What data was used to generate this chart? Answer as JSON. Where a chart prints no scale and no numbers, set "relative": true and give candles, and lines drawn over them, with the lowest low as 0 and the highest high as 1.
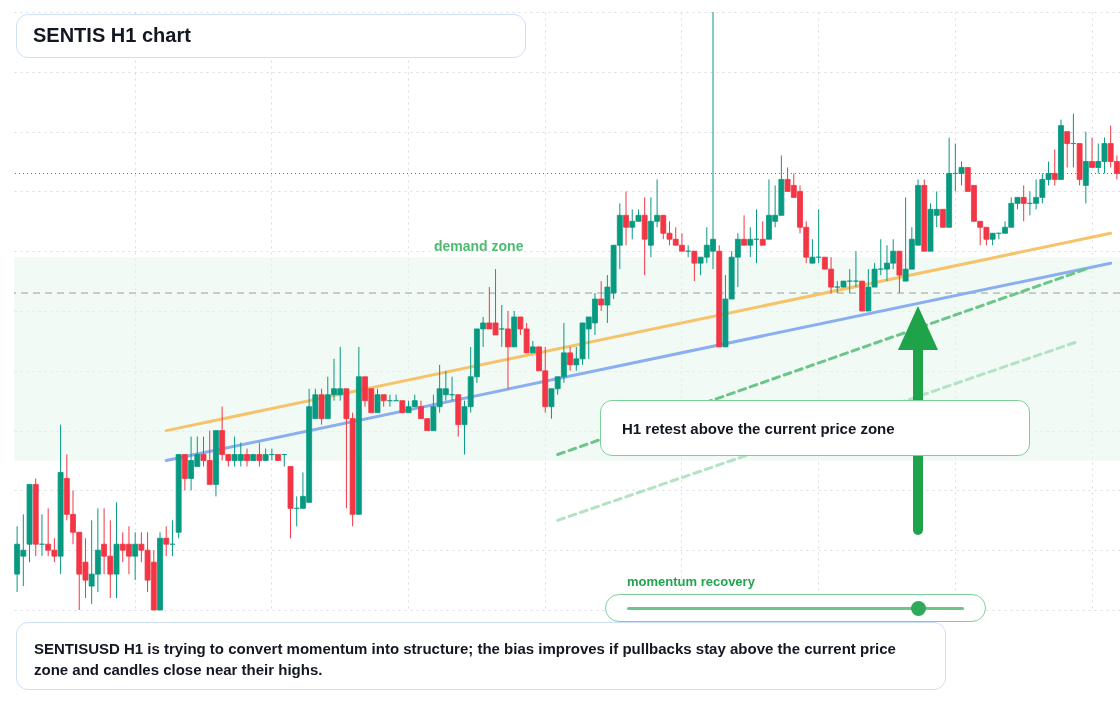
{
  "chart_data": {
    "type": "candlestick",
    "title": "SENTIS H1 chart",
    "relative": true,
    "grid": true,
    "tick_labels": false,
    "categories": [
      null,
      null,
      null,
      null,
      null,
      null,
      null,
      null,
      null,
      null,
      null,
      null,
      null,
      null,
      null,
      null,
      null,
      null,
      null,
      null,
      null,
      null,
      null,
      null,
      null,
      null,
      null,
      null,
      null,
      null,
      null,
      null,
      null,
      null,
      null,
      null,
      null,
      null,
      null,
      null,
      null,
      null,
      null,
      null,
      null,
      null,
      null,
      null,
      null,
      null,
      null,
      null,
      null,
      null,
      null,
      null,
      null,
      null,
      null,
      null,
      null,
      null,
      null,
      null,
      null,
      null,
      null,
      null,
      null,
      null,
      null,
      null,
      null,
      null,
      null,
      null,
      null,
      null,
      null,
      null,
      null,
      null,
      null,
      null,
      null,
      null,
      null,
      null,
      null,
      null,
      null,
      null,
      null,
      null,
      null,
      null,
      null,
      null,
      null,
      null,
      null,
      null,
      null,
      null,
      null,
      null,
      null,
      null,
      null,
      null,
      null,
      null,
      null,
      null,
      null,
      null,
      null,
      null,
      null,
      null,
      null,
      null,
      null,
      null,
      null,
      null,
      null,
      null,
      null,
      null,
      null,
      null,
      null,
      null,
      null,
      null,
      null,
      null,
      null,
      null,
      null,
      null,
      null,
      null,
      null,
      null,
      null,
      null,
      null,
      null,
      null,
      null,
      null,
      null,
      null,
      null,
      null,
      null,
      null,
      null,
      null,
      null,
      null,
      null,
      null,
      null,
      null,
      null,
      null,
      null,
      null,
      null,
      null,
      null,
      null,
      null,
      null,
      null
    ],
    "ohlc": [
      [
        0.06,
        0.14,
        0.03,
        0.11
      ],
      [
        0.09,
        0.16,
        0.04,
        0.1
      ],
      [
        0.11,
        0.21,
        0.08,
        0.21
      ],
      [
        0.21,
        0.22,
        0.09,
        0.11
      ],
      [
        0.11,
        0.16,
        0.09,
        0.11
      ],
      [
        0.11,
        0.17,
        0.09,
        0.1
      ],
      [
        0.1,
        0.12,
        0.08,
        0.09
      ],
      [
        0.09,
        0.31,
        0.06,
        0.23
      ],
      [
        0.22,
        0.26,
        0.15,
        0.16
      ],
      [
        0.16,
        0.2,
        0.11,
        0.13
      ],
      [
        0.13,
        0.13,
        0.0,
        0.06
      ],
      [
        0.08,
        0.12,
        0.02,
        0.05
      ],
      [
        0.04,
        0.15,
        0.01,
        0.06
      ],
      [
        0.06,
        0.17,
        0.03,
        0.1
      ],
      [
        0.11,
        0.17,
        0.06,
        0.09
      ],
      [
        0.09,
        0.15,
        0.02,
        0.06
      ],
      [
        0.06,
        0.18,
        0.02,
        0.11
      ],
      [
        0.11,
        0.13,
        0.08,
        0.1
      ],
      [
        0.11,
        0.14,
        0.06,
        0.09
      ],
      [
        0.09,
        0.13,
        0.05,
        0.11
      ],
      [
        0.11,
        0.13,
        0.08,
        0.1
      ],
      [
        0.1,
        0.13,
        0.03,
        0.05
      ],
      [
        0.08,
        0.1,
        0.0,
        0.0
      ],
      [
        0.0,
        0.13,
        0.0,
        0.12
      ],
      [
        0.12,
        0.14,
        0.09,
        0.11
      ],
      [
        0.11,
        0.15,
        0.09,
        0.11
      ],
      [
        0.13,
        0.26,
        0.12,
        0.26
      ],
      [
        0.26,
        0.26,
        0.2,
        0.22
      ],
      [
        0.22,
        0.29,
        0.2,
        0.25
      ],
      [
        0.24,
        0.29,
        0.24,
        0.26
      ],
      [
        0.26,
        0.29,
        0.24,
        0.25
      ],
      [
        0.25,
        0.3,
        0.21,
        0.21
      ],
      [
        0.21,
        0.3,
        0.19,
        0.3
      ],
      [
        0.3,
        0.34,
        0.25,
        0.26
      ],
      [
        0.26,
        0.26,
        0.24,
        0.25
      ],
      [
        0.25,
        0.29,
        0.24,
        0.26
      ],
      [
        0.25,
        0.28,
        0.24,
        0.26
      ],
      [
        0.26,
        0.27,
        0.24,
        0.25
      ],
      [
        0.25,
        0.26,
        0.25,
        0.26
      ],
      [
        0.26,
        0.28,
        0.24,
        0.25
      ],
      [
        0.25,
        0.27,
        0.25,
        0.26
      ],
      [
        0.26,
        0.27,
        0.25,
        0.26
      ],
      [
        0.26,
        0.26,
        0.25,
        0.25
      ],
      [
        0.26,
        0.26,
        0.24,
        0.26
      ],
      [
        0.24,
        0.24,
        0.12,
        0.17
      ],
      [
        0.17,
        0.19,
        0.14,
        0.17
      ],
      [
        0.17,
        0.23,
        0.17,
        0.19
      ],
      [
        0.18,
        0.37,
        0.18,
        0.34
      ],
      [
        0.32,
        0.37,
        0.32,
        0.36
      ],
      [
        0.36,
        0.37,
        0.31,
        0.32
      ],
      [
        0.32,
        0.39,
        0.32,
        0.36
      ],
      [
        0.36,
        0.42,
        0.35,
        0.37
      ],
      [
        0.36,
        0.44,
        0.35,
        0.37
      ],
      [
        0.37,
        0.37,
        0.17,
        0.32
      ],
      [
        0.32,
        0.33,
        0.14,
        0.16
      ],
      [
        0.16,
        0.44,
        0.16,
        0.39
      ],
      [
        0.39,
        0.39,
        0.34,
        0.35
      ],
      [
        0.37,
        0.37,
        0.33,
        0.33
      ],
      [
        0.33,
        0.37,
        0.33,
        0.36
      ],
      [
        0.36,
        0.36,
        0.34,
        0.35
      ],
      [
        0.35,
        0.36,
        0.34,
        0.35
      ],
      [
        0.35,
        0.36,
        0.35,
        0.35
      ],
      [
        0.35,
        0.35,
        0.33,
        0.33
      ],
      [
        0.33,
        0.35,
        0.33,
        0.34
      ],
      [
        0.34,
        0.36,
        0.34,
        0.35
      ],
      [
        0.34,
        0.35,
        0.32,
        0.32
      ],
      [
        0.32,
        0.32,
        0.3,
        0.3
      ],
      [
        0.3,
        0.36,
        0.3,
        0.34
      ],
      [
        0.34,
        0.41,
        0.33,
        0.37
      ],
      [
        0.36,
        0.4,
        0.35,
        0.37
      ],
      [
        0.36,
        0.39,
        0.35,
        0.36
      ],
      [
        0.36,
        0.36,
        0.29,
        0.31
      ],
      [
        0.31,
        0.35,
        0.26,
        0.34
      ],
      [
        0.34,
        0.44,
        0.33,
        0.39
      ],
      [
        0.39,
        0.47,
        0.38,
        0.47
      ],
      [
        0.47,
        0.49,
        0.44,
        0.48
      ],
      [
        0.48,
        0.54,
        0.47,
        0.47
      ],
      [
        0.48,
        0.57,
        0.46,
        0.46
      ],
      [
        0.47,
        0.51,
        0.44,
        0.47
      ],
      [
        0.47,
        0.5,
        0.37,
        0.44
      ],
      [
        0.44,
        0.5,
        0.44,
        0.49
      ],
      [
        0.49,
        0.49,
        0.46,
        0.47
      ],
      [
        0.47,
        0.48,
        0.43,
        0.43
      ],
      [
        0.43,
        0.45,
        0.43,
        0.44
      ],
      [
        0.44,
        0.44,
        0.4,
        0.4
      ],
      [
        0.4,
        0.44,
        0.33,
        0.34
      ],
      [
        0.34,
        0.37,
        0.32,
        0.37
      ],
      [
        0.37,
        0.39,
        0.36,
        0.39
      ],
      [
        0.39,
        0.48,
        0.38,
        0.43
      ],
      [
        0.43,
        0.44,
        0.4,
        0.41
      ],
      [
        0.41,
        0.44,
        0.4,
        0.42
      ],
      [
        0.42,
        0.48,
        0.41,
        0.48
      ],
      [
        0.47,
        0.49,
        0.42,
        0.49
      ],
      [
        0.48,
        0.53,
        0.46,
        0.52
      ],
      [
        0.52,
        0.55,
        0.5,
        0.51
      ],
      [
        0.51,
        0.56,
        0.48,
        0.54
      ],
      [
        0.53,
        0.61,
        0.52,
        0.61
      ],
      [
        0.61,
        0.68,
        0.57,
        0.66
      ],
      [
        0.66,
        0.7,
        0.61,
        0.64
      ],
      [
        0.64,
        0.67,
        0.62,
        0.65
      ],
      [
        0.65,
        0.67,
        0.65,
        0.66
      ],
      [
        0.66,
        0.69,
        0.56,
        0.62
      ],
      [
        0.61,
        0.69,
        0.59,
        0.65
      ],
      [
        0.65,
        0.72,
        0.64,
        0.66
      ],
      [
        0.66,
        0.66,
        0.62,
        0.63
      ],
      [
        0.63,
        0.65,
        0.61,
        0.62
      ],
      [
        0.62,
        0.64,
        0.61,
        0.61
      ],
      [
        0.61,
        0.63,
        0.6,
        0.6
      ],
      [
        0.6,
        0.61,
        0.59,
        0.6
      ],
      [
        0.6,
        0.6,
        0.55,
        0.58
      ],
      [
        0.58,
        0.59,
        0.56,
        0.59
      ],
      [
        0.59,
        0.64,
        0.58,
        0.61
      ],
      [
        0.6,
        1.0,
        0.57,
        0.62
      ],
      [
        0.6,
        0.61,
        0.44,
        0.44
      ],
      [
        0.44,
        0.56,
        0.44,
        0.52
      ],
      [
        0.52,
        0.6,
        0.52,
        0.59
      ],
      [
        0.59,
        0.63,
        0.54,
        0.62
      ],
      [
        0.62,
        0.66,
        0.61,
        0.61
      ],
      [
        0.61,
        0.64,
        0.59,
        0.62
      ],
      [
        0.62,
        0.67,
        0.58,
        0.62
      ],
      [
        0.62,
        0.65,
        0.61,
        0.61
      ],
      [
        0.62,
        0.72,
        0.62,
        0.66
      ],
      [
        0.65,
        0.71,
        0.64,
        0.66
      ],
      [
        0.66,
        0.76,
        0.66,
        0.72
      ],
      [
        0.72,
        0.74,
        0.7,
        0.7
      ],
      [
        0.71,
        0.73,
        0.69,
        0.69
      ],
      [
        0.7,
        0.71,
        0.63,
        0.64
      ],
      [
        0.64,
        0.65,
        0.58,
        0.59
      ],
      [
        0.58,
        0.62,
        0.58,
        0.59
      ],
      [
        0.59,
        0.67,
        0.58,
        0.59
      ],
      [
        0.59,
        0.59,
        0.57,
        0.57
      ],
      [
        0.57,
        0.59,
        0.53,
        0.54
      ],
      [
        0.54,
        0.55,
        0.53,
        0.54
      ],
      [
        0.54,
        0.55,
        0.54,
        0.55
      ],
      [
        0.55,
        0.57,
        0.53,
        0.55
      ],
      [
        0.55,
        0.6,
        0.54,
        0.55
      ],
      [
        0.55,
        0.55,
        0.5,
        0.5
      ],
      [
        0.5,
        0.57,
        0.5,
        0.54
      ],
      [
        0.54,
        0.58,
        0.54,
        0.57
      ],
      [
        0.57,
        0.62,
        0.56,
        0.57
      ],
      [
        0.57,
        0.61,
        0.55,
        0.58
      ],
      [
        0.58,
        0.62,
        0.57,
        0.6
      ],
      [
        0.6,
        0.6,
        0.53,
        0.56
      ],
      [
        0.55,
        0.69,
        0.55,
        0.57
      ],
      [
        0.57,
        0.64,
        0.57,
        0.62
      ],
      [
        0.61,
        0.72,
        0.61,
        0.71
      ],
      [
        0.71,
        0.72,
        0.6,
        0.6
      ],
      [
        0.6,
        0.68,
        0.6,
        0.67
      ],
      [
        0.66,
        0.7,
        0.64,
        0.67
      ],
      [
        0.67,
        0.67,
        0.64,
        0.64
      ],
      [
        0.64,
        0.79,
        0.64,
        0.73
      ],
      [
        0.73,
        0.78,
        0.7,
        0.73
      ],
      [
        0.73,
        0.75,
        0.71,
        0.74
      ],
      [
        0.74,
        0.74,
        0.7,
        0.7
      ],
      [
        0.71,
        0.71,
        0.65,
        0.65
      ],
      [
        0.65,
        0.65,
        0.61,
        0.64
      ],
      [
        0.64,
        0.64,
        0.61,
        0.62
      ],
      [
        0.62,
        0.63,
        0.61,
        0.63
      ],
      [
        0.63,
        0.63,
        0.62,
        0.63
      ],
      [
        0.63,
        0.65,
        0.63,
        0.64
      ],
      [
        0.64,
        0.69,
        0.64,
        0.68
      ],
      [
        0.68,
        0.69,
        0.67,
        0.69
      ],
      [
        0.69,
        0.71,
        0.65,
        0.68
      ],
      [
        0.68,
        0.7,
        0.66,
        0.68
      ],
      [
        0.68,
        0.72,
        0.67,
        0.69
      ],
      [
        0.69,
        0.73,
        0.68,
        0.72
      ],
      [
        0.72,
        0.75,
        0.71,
        0.73
      ],
      [
        0.73,
        0.77,
        0.71,
        0.72
      ],
      [
        0.72,
        0.82,
        0.72,
        0.81
      ],
      [
        0.8,
        0.8,
        0.74,
        0.78
      ],
      [
        0.78,
        0.83,
        0.74,
        0.78
      ],
      [
        0.78,
        0.78,
        0.71,
        0.72
      ],
      [
        0.71,
        0.8,
        0.68,
        0.75
      ],
      [
        0.75,
        0.79,
        0.74,
        0.74
      ],
      [
        0.74,
        0.78,
        0.73,
        0.75
      ],
      [
        0.75,
        0.79,
        0.73,
        0.78
      ],
      [
        0.78,
        0.81,
        0.74,
        0.75
      ],
      [
        0.75,
        0.76,
        0.72,
        0.73
      ]
    ],
    "series": [
      {
        "type": "line",
        "color": "#f6c36b",
        "line_style": "solid",
        "values": [
          null,
          null,
          null,
          null,
          null,
          null,
          null,
          null,
          null,
          null,
          null,
          null,
          null,
          null,
          null,
          null,
          null,
          null,
          null,
          null,
          null,
          null,
          null,
          null,
          0.3,
          null,
          null,
          null,
          null,
          null,
          null,
          null,
          null,
          null,
          null,
          null,
          null,
          null,
          null,
          null,
          null,
          null,
          null,
          null,
          null,
          null,
          null,
          null,
          null,
          null,
          null,
          null,
          null,
          null,
          null,
          null,
          null,
          null,
          null,
          null,
          null,
          null,
          null,
          null,
          null,
          null,
          null,
          null,
          null,
          null,
          null,
          null,
          null,
          null,
          null,
          null,
          null,
          null,
          null,
          null,
          null,
          null,
          null,
          null,
          null,
          null,
          null,
          null,
          null,
          null,
          null,
          null,
          null,
          null,
          null,
          null,
          null,
          null,
          null,
          null,
          null,
          null,
          null,
          null,
          null,
          null,
          null,
          null,
          null,
          null,
          null,
          null,
          null,
          null,
          null,
          null,
          null,
          null,
          null,
          null,
          null,
          null,
          null,
          null,
          null,
          null,
          null,
          null,
          null,
          null,
          null,
          null,
          null,
          null,
          null,
          null,
          null,
          null,
          null,
          null,
          null,
          null,
          null,
          null,
          null,
          null,
          null,
          null,
          null,
          null,
          null,
          null,
          null,
          null,
          null,
          null,
          null,
          null,
          null,
          null,
          null,
          null,
          null,
          null,
          null,
          null,
          null,
          null,
          null,
          null,
          null,
          null,
          null,
          null,
          null,
          null,
          0.63,
          null
        ]
      },
      {
        "type": "line",
        "color": "#8aaef0",
        "line_style": "solid",
        "values": [
          null,
          null,
          null,
          null,
          null,
          null,
          null,
          null,
          null,
          null,
          null,
          null,
          null,
          null,
          null,
          null,
          null,
          null,
          null,
          null,
          null,
          null,
          null,
          null,
          0.25,
          null,
          null,
          null,
          null,
          null,
          null,
          null,
          null,
          null,
          null,
          null,
          null,
          null,
          null,
          null,
          null,
          null,
          null,
          null,
          null,
          null,
          null,
          null,
          null,
          null,
          null,
          null,
          null,
          null,
          null,
          null,
          null,
          null,
          null,
          null,
          null,
          null,
          null,
          null,
          null,
          null,
          null,
          null,
          null,
          null,
          null,
          null,
          null,
          null,
          null,
          null,
          null,
          null,
          null,
          null,
          null,
          null,
          null,
          null,
          null,
          null,
          null,
          null,
          null,
          null,
          null,
          null,
          null,
          null,
          null,
          null,
          null,
          null,
          null,
          null,
          null,
          null,
          null,
          null,
          null,
          null,
          null,
          null,
          null,
          null,
          null,
          null,
          null,
          null,
          null,
          null,
          null,
          null,
          null,
          null,
          null,
          null,
          null,
          null,
          null,
          null,
          null,
          null,
          null,
          null,
          null,
          null,
          null,
          null,
          null,
          null,
          null,
          null,
          null,
          null,
          null,
          null,
          null,
          null,
          null,
          null,
          null,
          null,
          null,
          null,
          null,
          null,
          null,
          null,
          null,
          null,
          null,
          null,
          null,
          null,
          null,
          null,
          null,
          null,
          null,
          null,
          null,
          null,
          null,
          null,
          null,
          null,
          null,
          null,
          null,
          null,
          0.58,
          null
        ]
      },
      {
        "type": "line",
        "color": "#6cc58a",
        "line_style": "dashed",
        "values": [
          null,
          null,
          null,
          null,
          null,
          null,
          null,
          null,
          null,
          null,
          null,
          null,
          null,
          null,
          null,
          null,
          null,
          null,
          null,
          null,
          null,
          null,
          null,
          null,
          null,
          null,
          null,
          null,
          null,
          null,
          null,
          null,
          null,
          null,
          null,
          null,
          null,
          null,
          null,
          null,
          null,
          null,
          null,
          null,
          null,
          null,
          null,
          null,
          null,
          null,
          null,
          null,
          null,
          null,
          null,
          null,
          null,
          null,
          null,
          null,
          null,
          null,
          null,
          null,
          null,
          null,
          null,
          null,
          null,
          null,
          null,
          null,
          null,
          null,
          null,
          null,
          null,
          null,
          null,
          null,
          null,
          null,
          null,
          null,
          null,
          null,
          null,
          0.26,
          null,
          null,
          null,
          null,
          null,
          null,
          null,
          null,
          null,
          null,
          null,
          null,
          null,
          null,
          null,
          null,
          null,
          null,
          null,
          null,
          null,
          null,
          null,
          null,
          null,
          null,
          null,
          null,
          null,
          null,
          null,
          null,
          null,
          null,
          null,
          null,
          null,
          null,
          null,
          null,
          null,
          null,
          null,
          null,
          null,
          null,
          null,
          null,
          null,
          null,
          null,
          null,
          null,
          null,
          null,
          null,
          null,
          null,
          null,
          null,
          null,
          null,
          null,
          null,
          null,
          null,
          null,
          null,
          null,
          null,
          null,
          null,
          null,
          null,
          null,
          null,
          null,
          null,
          null,
          null,
          null,
          null,
          null,
          null,
          0.57,
          null,
          null,
          null,
          null,
          null
        ]
      },
      {
        "type": "line",
        "color": "#b5e2c3",
        "line_style": "dashed",
        "values": [
          null,
          null,
          null,
          null,
          null,
          null,
          null,
          null,
          null,
          null,
          null,
          null,
          null,
          null,
          null,
          null,
          null,
          null,
          null,
          null,
          null,
          null,
          null,
          null,
          null,
          null,
          null,
          null,
          null,
          null,
          null,
          null,
          null,
          null,
          null,
          null,
          null,
          null,
          null,
          null,
          null,
          null,
          null,
          null,
          null,
          null,
          null,
          null,
          null,
          null,
          null,
          null,
          null,
          null,
          null,
          null,
          null,
          null,
          null,
          null,
          null,
          null,
          null,
          null,
          null,
          null,
          null,
          null,
          null,
          null,
          null,
          null,
          null,
          null,
          null,
          null,
          null,
          null,
          null,
          null,
          null,
          null,
          null,
          null,
          null,
          null,
          null,
          0.15,
          null,
          null,
          null,
          null,
          null,
          null,
          null,
          null,
          null,
          null,
          null,
          null,
          null,
          null,
          null,
          null,
          null,
          null,
          null,
          null,
          null,
          null,
          null,
          null,
          null,
          null,
          null,
          null,
          null,
          null,
          null,
          null,
          null,
          null,
          null,
          null,
          null,
          null,
          null,
          null,
          null,
          null,
          null,
          null,
          null,
          null,
          null,
          null,
          null,
          null,
          null,
          null,
          null,
          null,
          null,
          null,
          null,
          null,
          null,
          null,
          null,
          null,
          null,
          null,
          null,
          null,
          null,
          null,
          null,
          null,
          null,
          null,
          null,
          null,
          null,
          null,
          null,
          null,
          null,
          null,
          null,
          null,
          null,
          0.45,
          null,
          null,
          null,
          null,
          null,
          null
        ]
      }
    ],
    "ref_lines": [
      {
        "axis": "y",
        "value": 0.53,
        "color": "#9e9e9e",
        "line_style": "dashed"
      },
      {
        "axis": "y",
        "value": 0.73,
        "color": "#f23645",
        "line_style": "dotted"
      }
    ],
    "bands": [
      {
        "axis": "y",
        "from": 0.25,
        "to": 0.59,
        "label": "demand zone",
        "color": "#e8f7ec"
      }
    ],
    "annotations": [
      "H1 retest above the current price zone",
      "momentum recovery",
      "SENTISUSD H1 is trying to convert momentum into structure; the bias improves if pullbacks stay above the current price zone and candles close near their highs."
    ]
  }
}
